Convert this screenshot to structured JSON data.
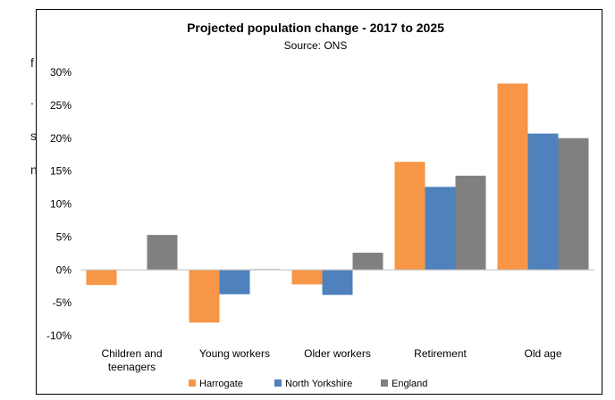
{
  "edge_fragment": [
    "f",
    ".",
    "s",
    "n"
  ],
  "chart_data": {
    "type": "bar",
    "title": "Projected population change - 2017 to 2025",
    "subtitle": "Source: ONS",
    "categories": [
      "Children and teenagers",
      "Young workers",
      "Older workers",
      "Retirement",
      "Old age"
    ],
    "category_lines": [
      [
        "Children and",
        "teenagers"
      ],
      [
        "Young workers"
      ],
      [
        "Older workers"
      ],
      [
        "Retirement"
      ],
      [
        "Old age"
      ]
    ],
    "series": [
      {
        "name": "Harrogate",
        "color": "#F79646",
        "values": [
          -2.3,
          -8.0,
          -2.2,
          16.4,
          28.3
        ]
      },
      {
        "name": "North Yorkshire",
        "color": "#4F81BD",
        "values": [
          0,
          -3.7,
          -3.8,
          12.6,
          20.7
        ]
      },
      {
        "name": "England",
        "color": "#808080",
        "values": [
          5.3,
          0.1,
          2.6,
          14.3,
          20.0
        ]
      }
    ],
    "ylim": [
      -10,
      30
    ],
    "y_ticks": [
      30,
      25,
      20,
      15,
      10,
      5,
      0,
      -5,
      -10
    ],
    "y_tick_labels": [
      "30%",
      "25%",
      "20%",
      "15%",
      "10%",
      "5%",
      "0%",
      "-5%",
      "-10%"
    ],
    "xlabel": "",
    "ylabel": "",
    "grid": false,
    "legend_position": "bottom"
  }
}
